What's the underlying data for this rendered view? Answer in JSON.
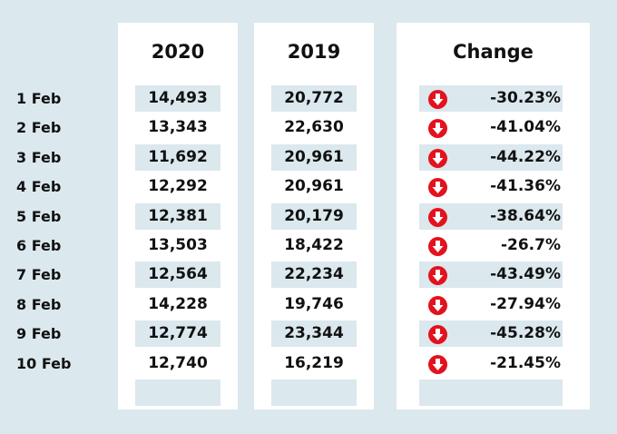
{
  "chart_data": {
    "type": "table",
    "columns": [
      "2020",
      "2019",
      "Change"
    ],
    "rows": [
      {
        "label": "1 Feb",
        "v2020": "14,493",
        "v2019": "20,772",
        "change": "-30.23%"
      },
      {
        "label": "2 Feb",
        "v2020": "13,343",
        "v2019": "22,630",
        "change": "-41.04%"
      },
      {
        "label": "3 Feb",
        "v2020": "11,692",
        "v2019": "20,961",
        "change": "-44.22%"
      },
      {
        "label": "4 Feb",
        "v2020": "12,292",
        "v2019": "20,961",
        "change": "-41.36%"
      },
      {
        "label": "5 Feb",
        "v2020": "12,381",
        "v2019": "20,179",
        "change": "-38.64%"
      },
      {
        "label": "6 Feb",
        "v2020": "13,503",
        "v2019": "18,422",
        "change": "-26.7%"
      },
      {
        "label": "7 Feb",
        "v2020": "12,564",
        "v2019": "22,234",
        "change": "-43.49%"
      },
      {
        "label": "8 Feb",
        "v2020": "14,228",
        "v2019": "19,746",
        "change": "-27.94%"
      },
      {
        "label": "9 Feb",
        "v2020": "12,774",
        "v2019": "23,344",
        "change": "-45.28%"
      },
      {
        "label": "10 Feb",
        "v2020": "12,740",
        "v2019": "16,219",
        "change": "-21.45%"
      }
    ],
    "change_icon": "down-arrow-circle-icon",
    "colors": {
      "background": "#dbe8ee",
      "panel": "#ffffff",
      "icon": "#e3121d"
    }
  }
}
